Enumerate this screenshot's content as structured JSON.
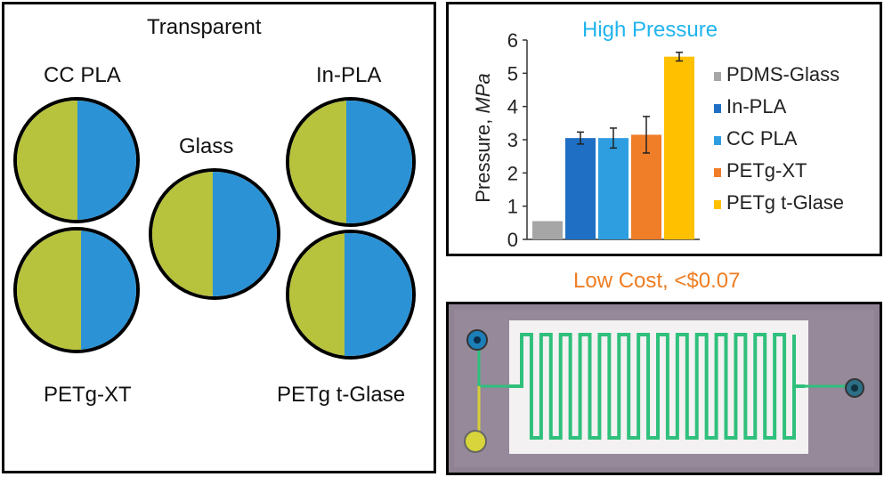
{
  "left_panel": {
    "title": "Transparent",
    "samples": [
      {
        "label": "CC PLA"
      },
      {
        "label": "Glass"
      },
      {
        "label": "In-PLA"
      },
      {
        "label": "PETg-XT"
      },
      {
        "label": "PETg t-Glase"
      }
    ]
  },
  "chart_title": "High Pressure",
  "cost_label": "Low Cost, <$0.07",
  "colors": {
    "yellow_film": "#b7c23d",
    "blue_film": "#2b92d6",
    "title_cyan": "#20b4ee",
    "cost_orange": "#ef7d22",
    "channel_green": "#2fc07c",
    "chip_background": "#8f8393"
  },
  "chart_data": {
    "type": "bar",
    "title": "High Pressure",
    "ylabel": "Pressure, MPa",
    "ylabel_prefix": "Pressure, ",
    "ylabel_unit": "MPa",
    "ylim": [
      0,
      6
    ],
    "yticks": [
      0,
      1,
      2,
      3,
      4,
      5,
      6
    ],
    "legend_position": "right",
    "series": [
      {
        "name": "PDMS-Glass",
        "value": 0.55,
        "error": 0,
        "color": "#a6a6a6"
      },
      {
        "name": "In-PLA",
        "value": 3.05,
        "error": 0.18,
        "color": "#1f6fc4"
      },
      {
        "name": "CC PLA",
        "value": 3.05,
        "error": 0.3,
        "color": "#2e9ee0"
      },
      {
        "name": "PETg-XT",
        "value": 3.15,
        "error": 0.55,
        "color": "#f07d28"
      },
      {
        "name": "PETg t-Glase",
        "value": 5.5,
        "error": 0.13,
        "color": "#ffc000"
      }
    ]
  }
}
